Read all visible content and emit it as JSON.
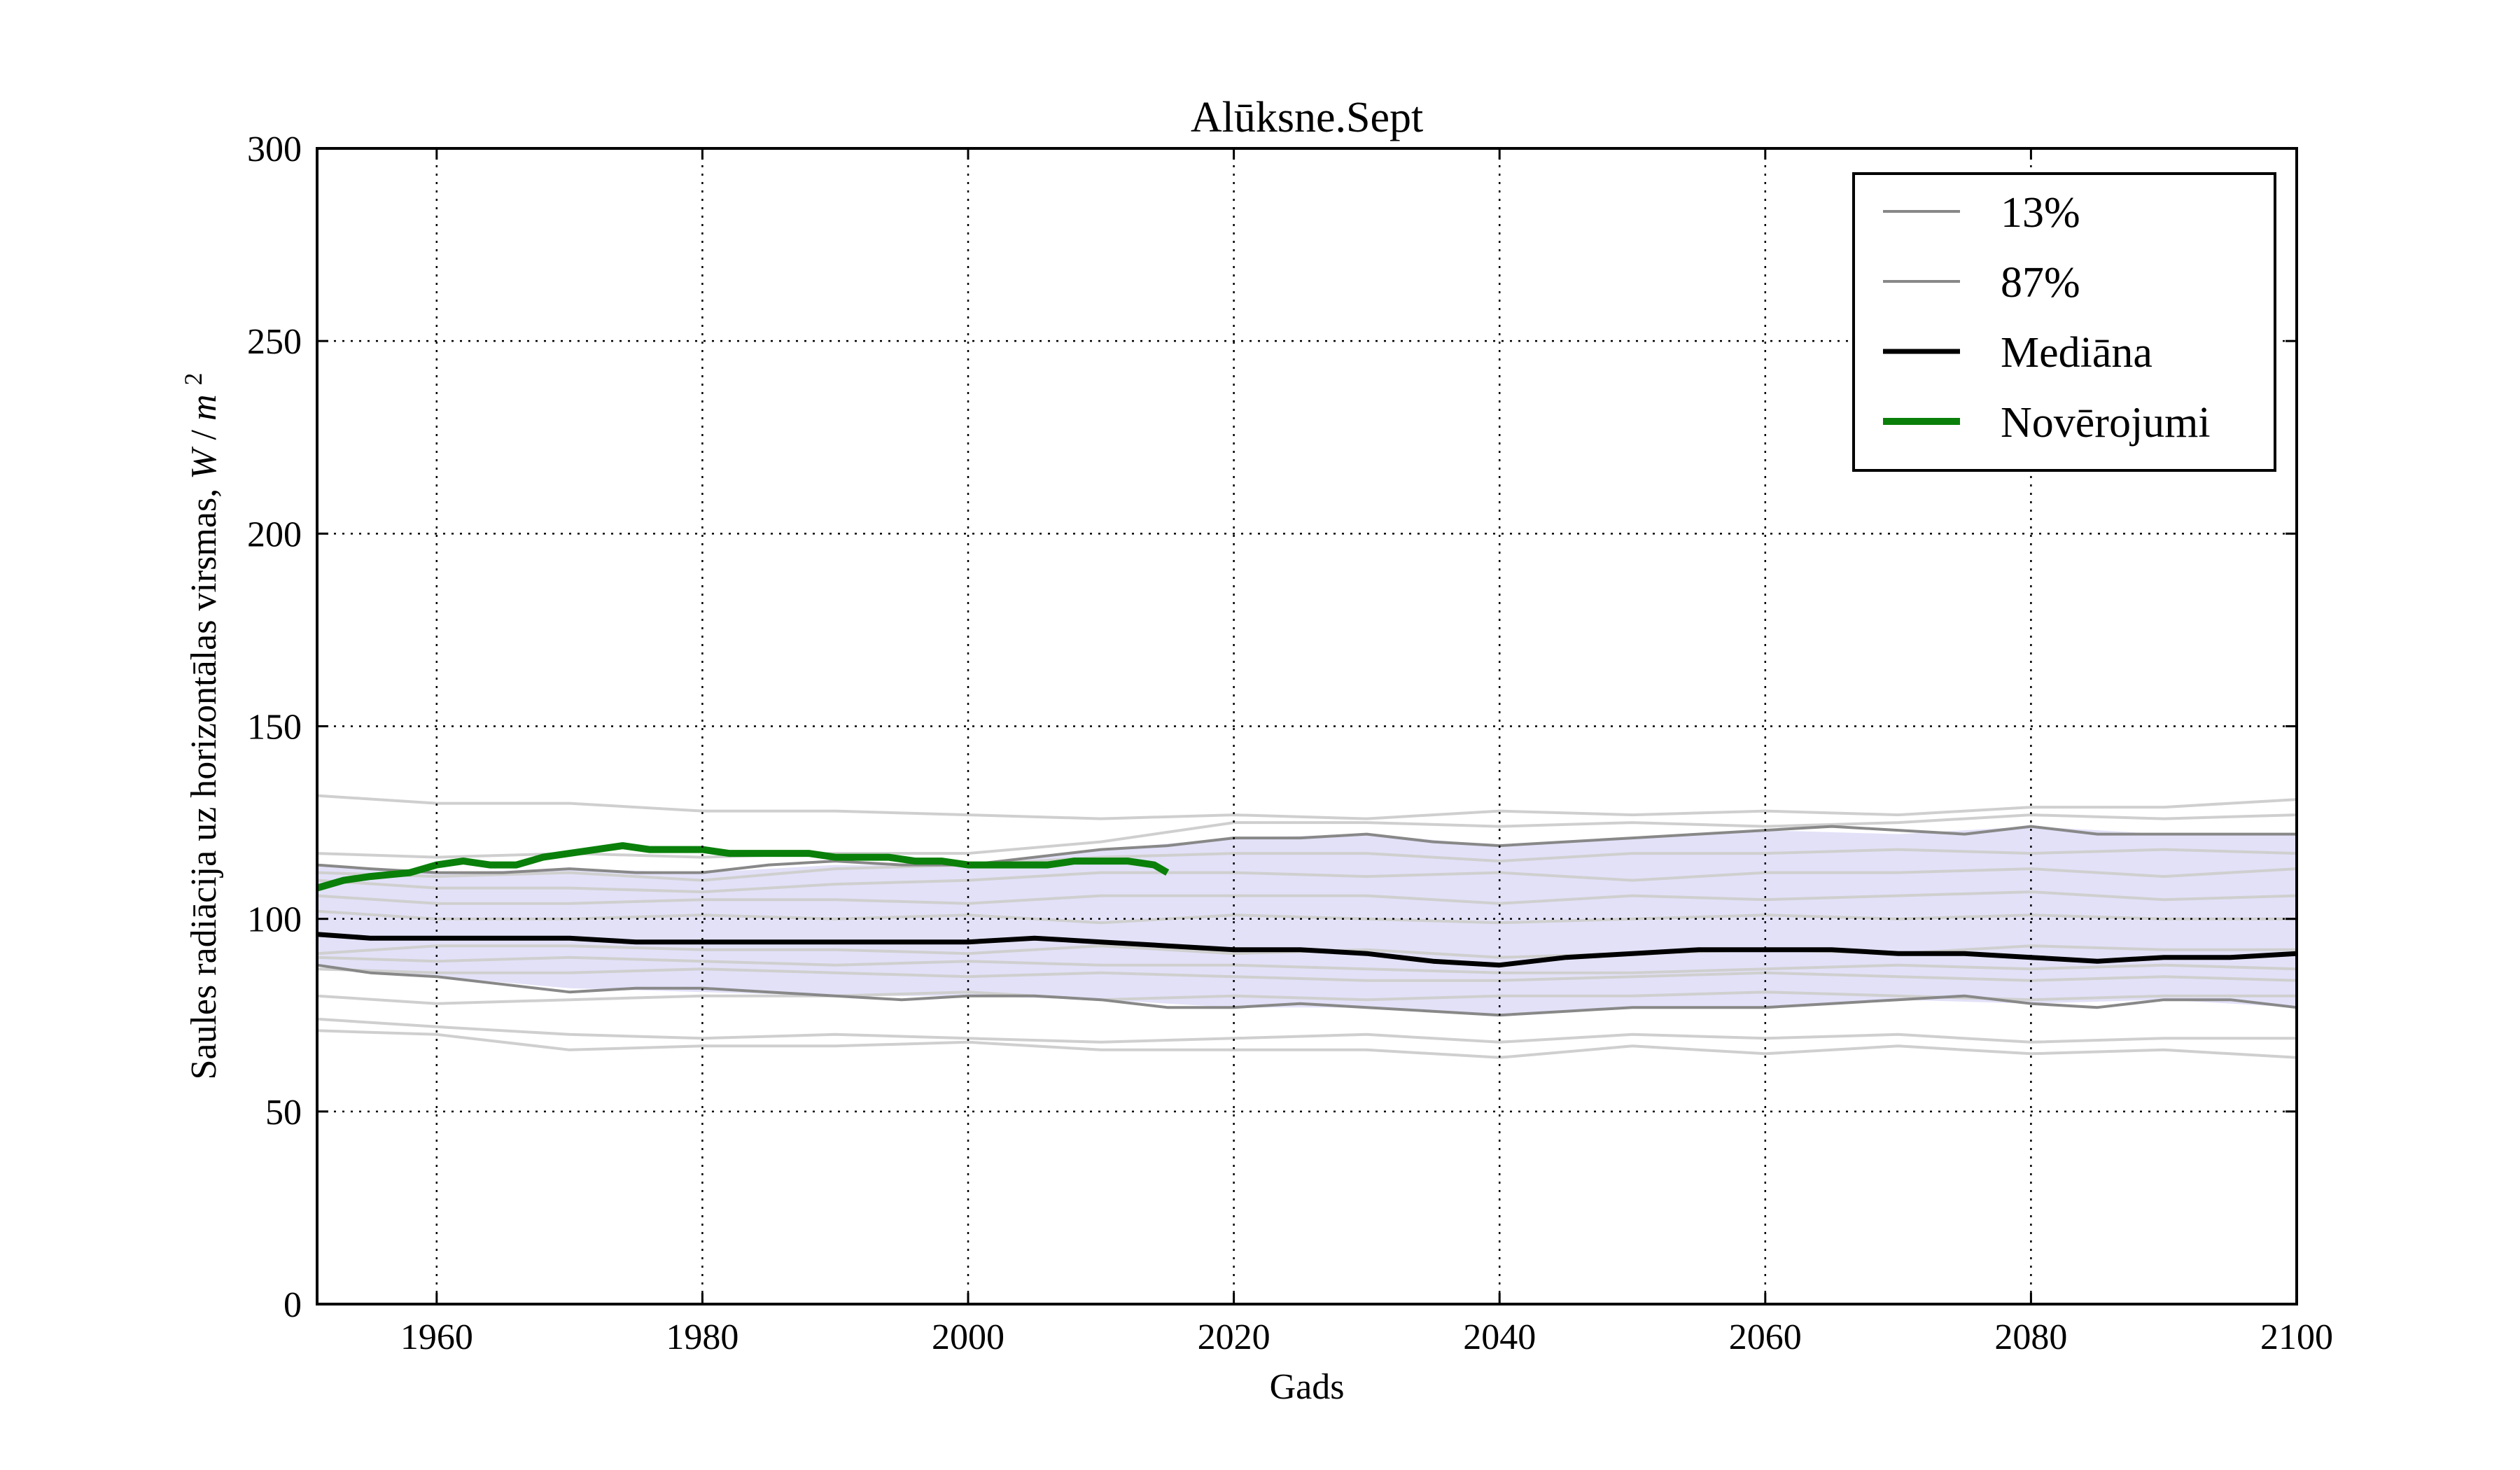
{
  "chart_data": {
    "type": "line",
    "title": "Alūksne.Sept",
    "xlabel": "Gads",
    "ylabel": "Saules radiācija uz horizontālas virsmas, W/m²",
    "ylabel_text": "Saules radiācija uz horizontālas virsmas,",
    "ylabel_unit_w": "W",
    "ylabel_unit_slash": "/",
    "ylabel_unit_m": "m",
    "ylabel_unit_exp": "2",
    "xlim": [
      1951,
      2100
    ],
    "ylim": [
      0,
      300
    ],
    "x_ticks": [
      1960,
      1980,
      2000,
      2020,
      2040,
      2060,
      2080,
      2100
    ],
    "x_tick_labels": [
      "1960",
      "1980",
      "2000",
      "2020",
      "2040",
      "2060",
      "2080",
      "2100"
    ],
    "y_ticks": [
      0,
      50,
      100,
      150,
      200,
      250,
      300
    ],
    "y_tick_labels": [
      "0",
      "50",
      "100",
      "150",
      "200",
      "250",
      "300"
    ],
    "grid": true,
    "legend_position": "top-right",
    "legend": [
      "13%",
      "87%",
      "Mediāna",
      "Novērojumi"
    ],
    "band": {
      "color": "#e2e1f8",
      "x": [
        1951,
        1960,
        1970,
        1980,
        1990,
        2000,
        2010,
        2020,
        2030,
        2040,
        2050,
        2060,
        2070,
        2080,
        2090,
        2100
      ],
      "upper": [
        114,
        112,
        113,
        112,
        114,
        114,
        118,
        121,
        122,
        119,
        121,
        123,
        122,
        124,
        122,
        122
      ],
      "lower": [
        88,
        85,
        82,
        81,
        80,
        80,
        79,
        77,
        77,
        75,
        77,
        77,
        79,
        78,
        79,
        77
      ]
    },
    "series": [
      {
        "name": "13%",
        "color": "#888888",
        "width": 4,
        "x": [
          1951,
          1955,
          1960,
          1965,
          1970,
          1975,
          1980,
          1985,
          1990,
          1995,
          2000,
          2005,
          2010,
          2015,
          2020,
          2025,
          2030,
          2035,
          2040,
          2045,
          2050,
          2055,
          2060,
          2065,
          2070,
          2075,
          2080,
          2085,
          2090,
          2095,
          2100
        ],
        "values": [
          88,
          86,
          85,
          83,
          81,
          82,
          82,
          81,
          80,
          79,
          80,
          80,
          79,
          77,
          77,
          78,
          77,
          76,
          75,
          76,
          77,
          77,
          77,
          78,
          79,
          80,
          78,
          77,
          79,
          79,
          77
        ]
      },
      {
        "name": "87%",
        "color": "#888888",
        "width": 4,
        "x": [
          1951,
          1955,
          1960,
          1965,
          1970,
          1975,
          1980,
          1985,
          1990,
          1995,
          2000,
          2005,
          2010,
          2015,
          2020,
          2025,
          2030,
          2035,
          2040,
          2045,
          2050,
          2055,
          2060,
          2065,
          2070,
          2075,
          2080,
          2085,
          2090,
          2095,
          2100
        ],
        "values": [
          114,
          113,
          112,
          112,
          113,
          112,
          112,
          114,
          115,
          114,
          114,
          116,
          118,
          119,
          121,
          121,
          122,
          120,
          119,
          120,
          121,
          122,
          123,
          124,
          123,
          122,
          124,
          122,
          122,
          122,
          122
        ]
      },
      {
        "name": "Mediāna",
        "color": "#000000",
        "width": 7,
        "x": [
          1951,
          1955,
          1960,
          1965,
          1970,
          1975,
          1980,
          1985,
          1990,
          1995,
          2000,
          2005,
          2010,
          2015,
          2020,
          2025,
          2030,
          2035,
          2040,
          2045,
          2050,
          2055,
          2060,
          2065,
          2070,
          2075,
          2080,
          2085,
          2090,
          2095,
          2100
        ],
        "values": [
          96,
          95,
          95,
          95,
          95,
          94,
          94,
          94,
          94,
          94,
          94,
          95,
          94,
          93,
          92,
          92,
          91,
          89,
          88,
          90,
          91,
          92,
          92,
          92,
          91,
          91,
          90,
          89,
          90,
          90,
          91
        ]
      },
      {
        "name": "Novērojumi",
        "color": "#0a800a",
        "width": 10,
        "x": [
          1951,
          1953,
          1955,
          1958,
          1960,
          1962,
          1964,
          1966,
          1968,
          1970,
          1972,
          1974,
          1976,
          1978,
          1980,
          1982,
          1984,
          1986,
          1988,
          1990,
          1992,
          1994,
          1996,
          1998,
          2000,
          2002,
          2004,
          2006,
          2008,
          2010,
          2012,
          2014,
          2015
        ],
        "values": [
          108,
          110,
          111,
          112,
          114,
          115,
          114,
          114,
          116,
          117,
          118,
          119,
          118,
          118,
          118,
          117,
          117,
          117,
          117,
          116,
          116,
          116,
          115,
          115,
          114,
          114,
          114,
          114,
          115,
          115,
          115,
          114,
          112
        ]
      }
    ],
    "ensemble": {
      "color": "#cfcfcf",
      "x": [
        1951,
        1960,
        1970,
        1980,
        1990,
        2000,
        2010,
        2020,
        2030,
        2040,
        2050,
        2060,
        2070,
        2080,
        2090,
        2100
      ],
      "members": [
        [
          132,
          130,
          130,
          128,
          128,
          127,
          126,
          127,
          126,
          128,
          127,
          128,
          127,
          129,
          129,
          131
        ],
        [
          117,
          116,
          117,
          116,
          117,
          117,
          120,
          125,
          125,
          124,
          125,
          124,
          125,
          127,
          126,
          127
        ],
        [
          112,
          111,
          112,
          110,
          113,
          114,
          116,
          117,
          117,
          115,
          117,
          117,
          118,
          117,
          118,
          117
        ],
        [
          110,
          108,
          108,
          107,
          109,
          110,
          112,
          112,
          111,
          112,
          110,
          112,
          112,
          113,
          111,
          113
        ],
        [
          106,
          104,
          104,
          105,
          105,
          104,
          106,
          106,
          106,
          104,
          106,
          105,
          106,
          107,
          105,
          106
        ],
        [
          102,
          100,
          100,
          101,
          100,
          101,
          99,
          101,
          100,
          99,
          100,
          101,
          100,
          101,
          100,
          100
        ],
        [
          91,
          93,
          93,
          92,
          92,
          91,
          93,
          91,
          92,
          90,
          91,
          92,
          91,
          93,
          92,
          92
        ],
        [
          90,
          89,
          90,
          89,
          88,
          89,
          88,
          88,
          87,
          86,
          86,
          87,
          88,
          87,
          88,
          87
        ],
        [
          87,
          86,
          86,
          87,
          86,
          85,
          86,
          85,
          84,
          84,
          85,
          86,
          85,
          84,
          85,
          84
        ],
        [
          80,
          78,
          79,
          80,
          80,
          81,
          79,
          80,
          79,
          80,
          80,
          81,
          80,
          79,
          80,
          80
        ],
        [
          74,
          72,
          70,
          69,
          70,
          69,
          68,
          69,
          70,
          68,
          70,
          69,
          70,
          68,
          69,
          69
        ],
        [
          71,
          70,
          66,
          67,
          67,
          68,
          66,
          66,
          66,
          64,
          67,
          65,
          67,
          65,
          66,
          64
        ]
      ]
    }
  }
}
